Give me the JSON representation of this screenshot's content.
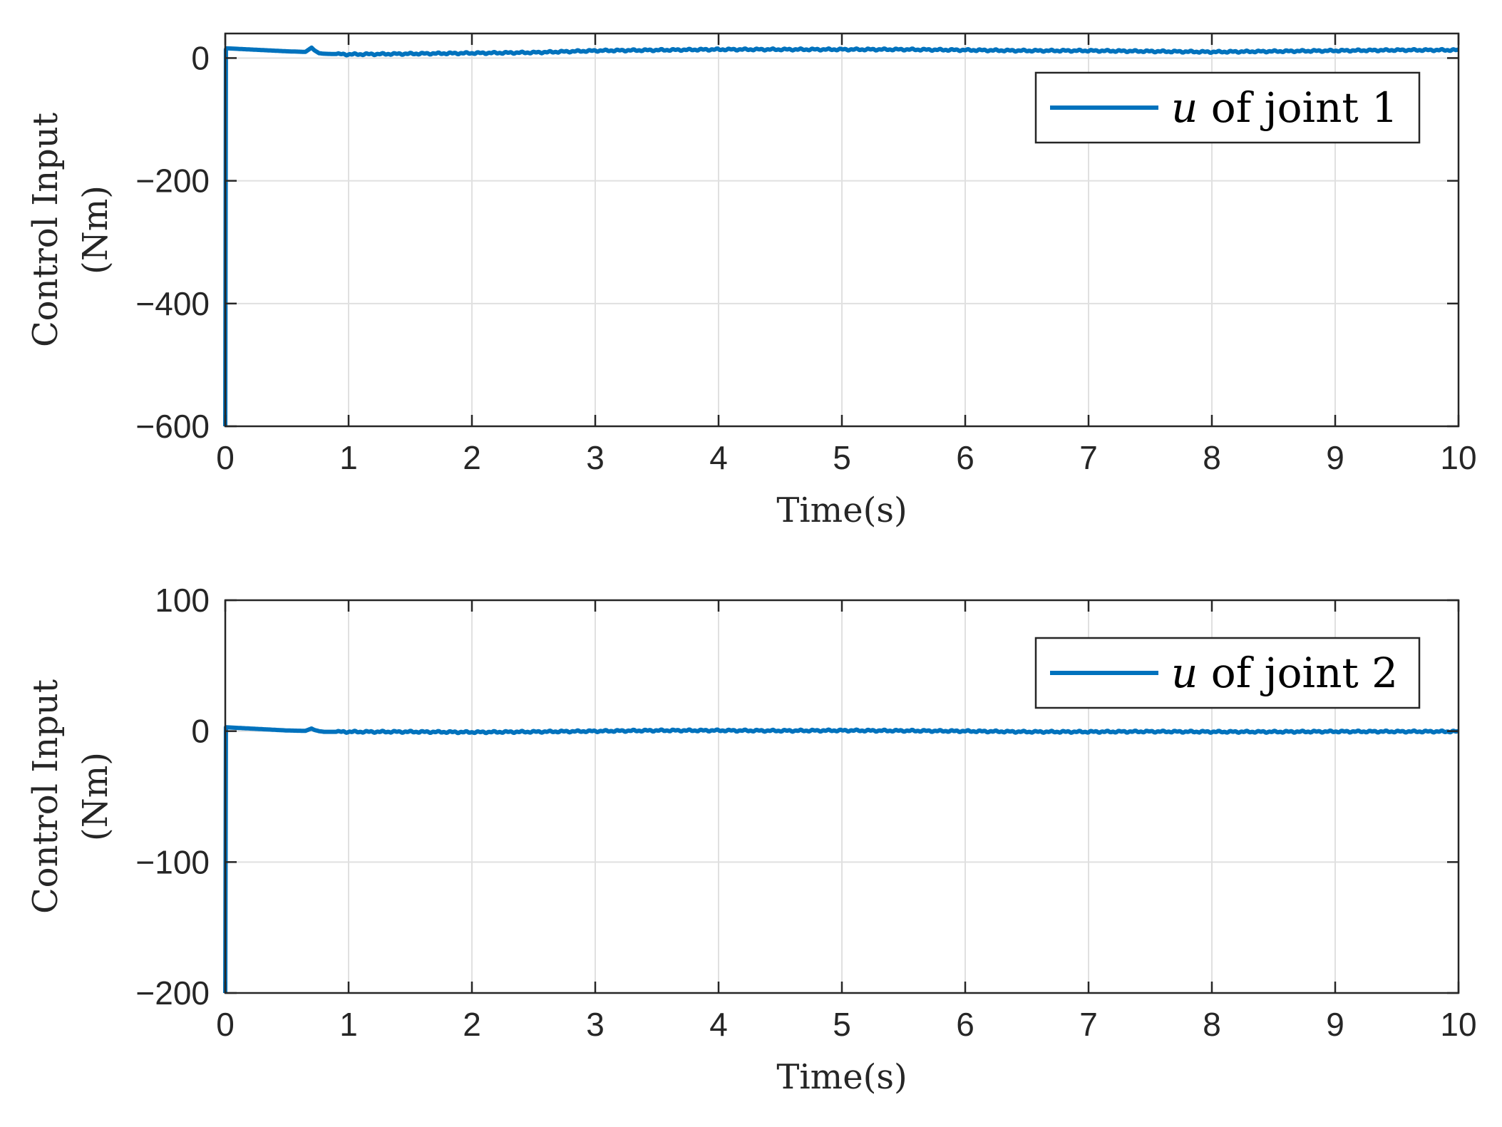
{
  "colors": {
    "series": "#0072BD",
    "grid": "#e0e0e0",
    "axis": "#262626",
    "background": "#ffffff"
  },
  "chart_data": [
    {
      "type": "line",
      "xlabel": "Time(s)",
      "ylabel": [
        "Control Input",
        "(Nm)"
      ],
      "xlim": [
        0,
        10
      ],
      "ylim": [
        -600,
        40
      ],
      "xticks": [
        0,
        1,
        2,
        3,
        4,
        5,
        6,
        7,
        8,
        9,
        10
      ],
      "xtick_labels": [
        "0",
        "1",
        "2",
        "3",
        "4",
        "5",
        "6",
        "7",
        "8",
        "9",
        "10"
      ],
      "yticks": [
        0,
        -200,
        -400,
        -600
      ],
      "ytick_labels": [
        "0",
        "−200",
        "−400",
        "−600"
      ],
      "grid": true,
      "legend_position": "top-right",
      "legend": {
        "var": "u",
        "text": " of joint 1"
      },
      "series": [
        {
          "name": "u of joint 1",
          "x": [
            0,
            0.005,
            0.01,
            0.1,
            0.3,
            0.5,
            0.65,
            0.7,
            0.72,
            0.76,
            0.8,
            1.0,
            1.5,
            2.0,
            2.5,
            3.0,
            3.5,
            4.0,
            4.5,
            5.0,
            5.5,
            6.0,
            6.5,
            7.0,
            7.5,
            8.0,
            8.5,
            9.0,
            9.5,
            10.0
          ],
          "y": [
            -600,
            14,
            16,
            15,
            13,
            11,
            10,
            17,
            13,
            8,
            7,
            6,
            7,
            8,
            9,
            12,
            13,
            14,
            14,
            14,
            14,
            13,
            12,
            12,
            11,
            10,
            11,
            12,
            13,
            13
          ]
        }
      ]
    },
    {
      "type": "line",
      "xlabel": "Time(s)",
      "ylabel": [
        "Control Input",
        "(Nm)"
      ],
      "xlim": [
        0,
        10
      ],
      "ylim": [
        -200,
        100
      ],
      "xticks": [
        0,
        1,
        2,
        3,
        4,
        5,
        6,
        7,
        8,
        9,
        10
      ],
      "xtick_labels": [
        "0",
        "1",
        "2",
        "3",
        "4",
        "5",
        "6",
        "7",
        "8",
        "9",
        "10"
      ],
      "yticks": [
        100,
        0,
        -100,
        -200
      ],
      "ytick_labels": [
        "100",
        "0",
        "−100",
        "−200"
      ],
      "grid": true,
      "legend_position": "top-right",
      "legend": {
        "var": "u",
        "text": " of joint 2"
      },
      "series": [
        {
          "name": "u of joint 2",
          "x": [
            0,
            0.005,
            0.01,
            0.1,
            0.3,
            0.5,
            0.65,
            0.7,
            0.72,
            0.76,
            0.8,
            1.0,
            1.5,
            2.0,
            2.5,
            3.0,
            3.5,
            4.0,
            4.5,
            5.0,
            5.5,
            6.0,
            6.5,
            7.0,
            7.5,
            8.0,
            8.5,
            9.0,
            9.5,
            10.0
          ],
          "y": [
            -200,
            3,
            3,
            2.5,
            1.5,
            0.5,
            0.2,
            2,
            1,
            0,
            -0.5,
            -0.5,
            -0.5,
            -0.8,
            -0.5,
            0,
            0.5,
            0.5,
            0.3,
            0.5,
            0.3,
            0,
            -0.5,
            -0.5,
            -0.3,
            -0.5,
            -0.5,
            -0.3,
            -0.3,
            -0.3
          ]
        }
      ]
    }
  ]
}
